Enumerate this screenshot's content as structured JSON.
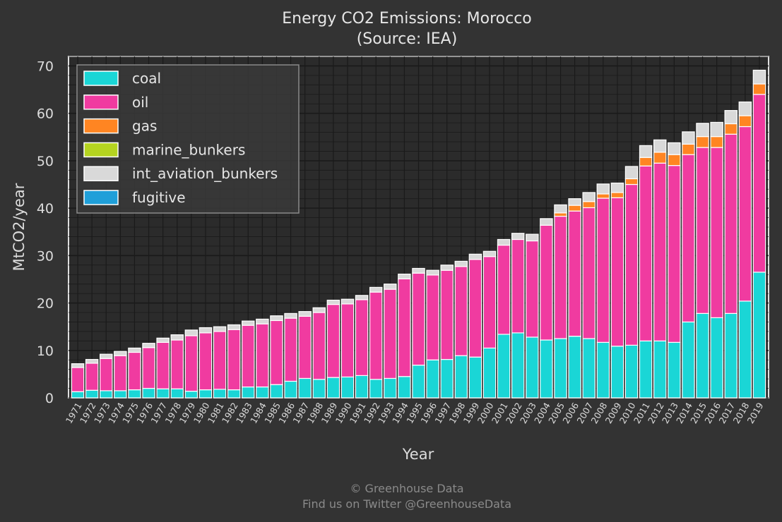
{
  "chart_data": {
    "type": "bar",
    "stacked": true,
    "title": "Energy CO2 Emissions: Morocco",
    "subtitle": "(Source: IEA)",
    "xlabel": "Year",
    "ylabel": "MtCO2/year",
    "ylim": [
      0,
      72
    ],
    "yticks": [
      0,
      10,
      20,
      30,
      40,
      50,
      60,
      70
    ],
    "grid": true,
    "legend_position": "top-left",
    "categories": [
      "1971",
      "1972",
      "1973",
      "1974",
      "1975",
      "1976",
      "1977",
      "1978",
      "1979",
      "1980",
      "1981",
      "1982",
      "1983",
      "1984",
      "1985",
      "1986",
      "1987",
      "1988",
      "1989",
      "1990",
      "1991",
      "1992",
      "1993",
      "1994",
      "1995",
      "1996",
      "1997",
      "1998",
      "1999",
      "2000",
      "2001",
      "2002",
      "2003",
      "2004",
      "2005",
      "2006",
      "2007",
      "2008",
      "2009",
      "2010",
      "2011",
      "2012",
      "2013",
      "2014",
      "2015",
      "2016",
      "2017",
      "2018",
      "2019"
    ],
    "series": [
      {
        "name": "coal",
        "color": "#1ad6d6",
        "values": [
          1.3,
          1.6,
          1.5,
          1.5,
          1.7,
          2.0,
          1.9,
          1.9,
          1.4,
          1.7,
          1.8,
          1.7,
          2.3,
          2.3,
          2.8,
          3.5,
          4.1,
          3.9,
          4.3,
          4.4,
          4.7,
          3.9,
          4.1,
          4.5,
          6.9,
          8.0,
          8.1,
          8.9,
          8.6,
          10.5,
          13.4,
          13.7,
          12.8,
          12.2,
          12.5,
          13.0,
          12.5,
          11.7,
          10.9,
          11.1,
          12.0,
          12.0,
          11.7,
          16.0,
          17.8,
          16.9,
          17.8,
          20.4,
          26.5
        ]
      },
      {
        "name": "oil",
        "color": "#f03ba0",
        "values": [
          5.1,
          5.7,
          6.8,
          7.4,
          7.9,
          8.6,
          9.8,
          10.3,
          11.7,
          12.0,
          12.2,
          12.7,
          13.0,
          13.3,
          13.5,
          13.3,
          13.1,
          14.1,
          15.4,
          15.4,
          16.0,
          18.4,
          18.8,
          20.6,
          19.4,
          17.9,
          18.8,
          18.8,
          20.6,
          19.3,
          18.8,
          19.7,
          20.3,
          24.2,
          25.8,
          26.4,
          27.6,
          30.4,
          31.3,
          33.9,
          36.9,
          37.5,
          37.3,
          35.3,
          35.0,
          35.9,
          37.8,
          36.8,
          37.5
        ]
      },
      {
        "name": "gas",
        "color": "#ff8522",
        "values": [
          0,
          0,
          0,
          0,
          0,
          0,
          0,
          0,
          0,
          0,
          0,
          0,
          0,
          0,
          0,
          0,
          0,
          0,
          0,
          0,
          0,
          0,
          0,
          0,
          0,
          0,
          0,
          0,
          0,
          0,
          0,
          0,
          0,
          0,
          0.7,
          1.2,
          1.3,
          0.9,
          1.1,
          1.2,
          1.8,
          2.3,
          2.3,
          2.2,
          2.3,
          2.3,
          2.2,
          2.3,
          2.2
        ]
      },
      {
        "name": "marine_bunkers",
        "color": "#b5d420",
        "values": [
          0,
          0,
          0,
          0,
          0,
          0,
          0,
          0,
          0,
          0,
          0,
          0,
          0,
          0,
          0,
          0,
          0,
          0,
          0,
          0,
          0,
          0,
          0,
          0,
          0,
          0,
          0,
          0,
          0,
          0,
          0,
          0,
          0,
          0,
          0,
          0,
          0,
          0,
          0,
          0,
          0,
          0,
          0,
          0,
          0,
          0,
          0,
          0,
          0
        ]
      },
      {
        "name": "int_aviation_bunkers",
        "color": "#d9d9d9",
        "values": [
          0.8,
          0.8,
          0.9,
          0.9,
          0.9,
          0.9,
          0.9,
          1.1,
          1.2,
          1.1,
          1.0,
          1.0,
          0.9,
          1.0,
          1.0,
          1.0,
          1.0,
          1.0,
          0.9,
          1.0,
          0.9,
          1.0,
          1.1,
          1.0,
          1.0,
          1.0,
          1.1,
          1.1,
          1.1,
          1.1,
          1.2,
          1.3,
          1.4,
          1.4,
          1.7,
          1.4,
          1.9,
          2.1,
          2.0,
          2.6,
          2.5,
          2.6,
          2.5,
          2.6,
          2.8,
          3.0,
          2.8,
          2.9,
          2.9
        ]
      },
      {
        "name": "fugitive",
        "color": "#1f9fd9",
        "values": [
          0,
          0,
          0,
          0,
          0,
          0,
          0,
          0,
          0,
          0,
          0,
          0,
          0,
          0,
          0,
          0,
          0,
          0,
          0,
          0,
          0,
          0,
          0,
          0,
          0,
          0,
          0,
          0,
          0,
          0,
          0,
          0,
          0,
          0,
          0,
          0,
          0,
          0,
          0,
          0,
          0,
          0,
          0,
          0,
          0,
          0,
          0,
          0,
          0
        ]
      }
    ]
  },
  "footer": {
    "line1": "© Greenhouse Data",
    "line2": "Find us on Twitter @GreenhouseData"
  }
}
